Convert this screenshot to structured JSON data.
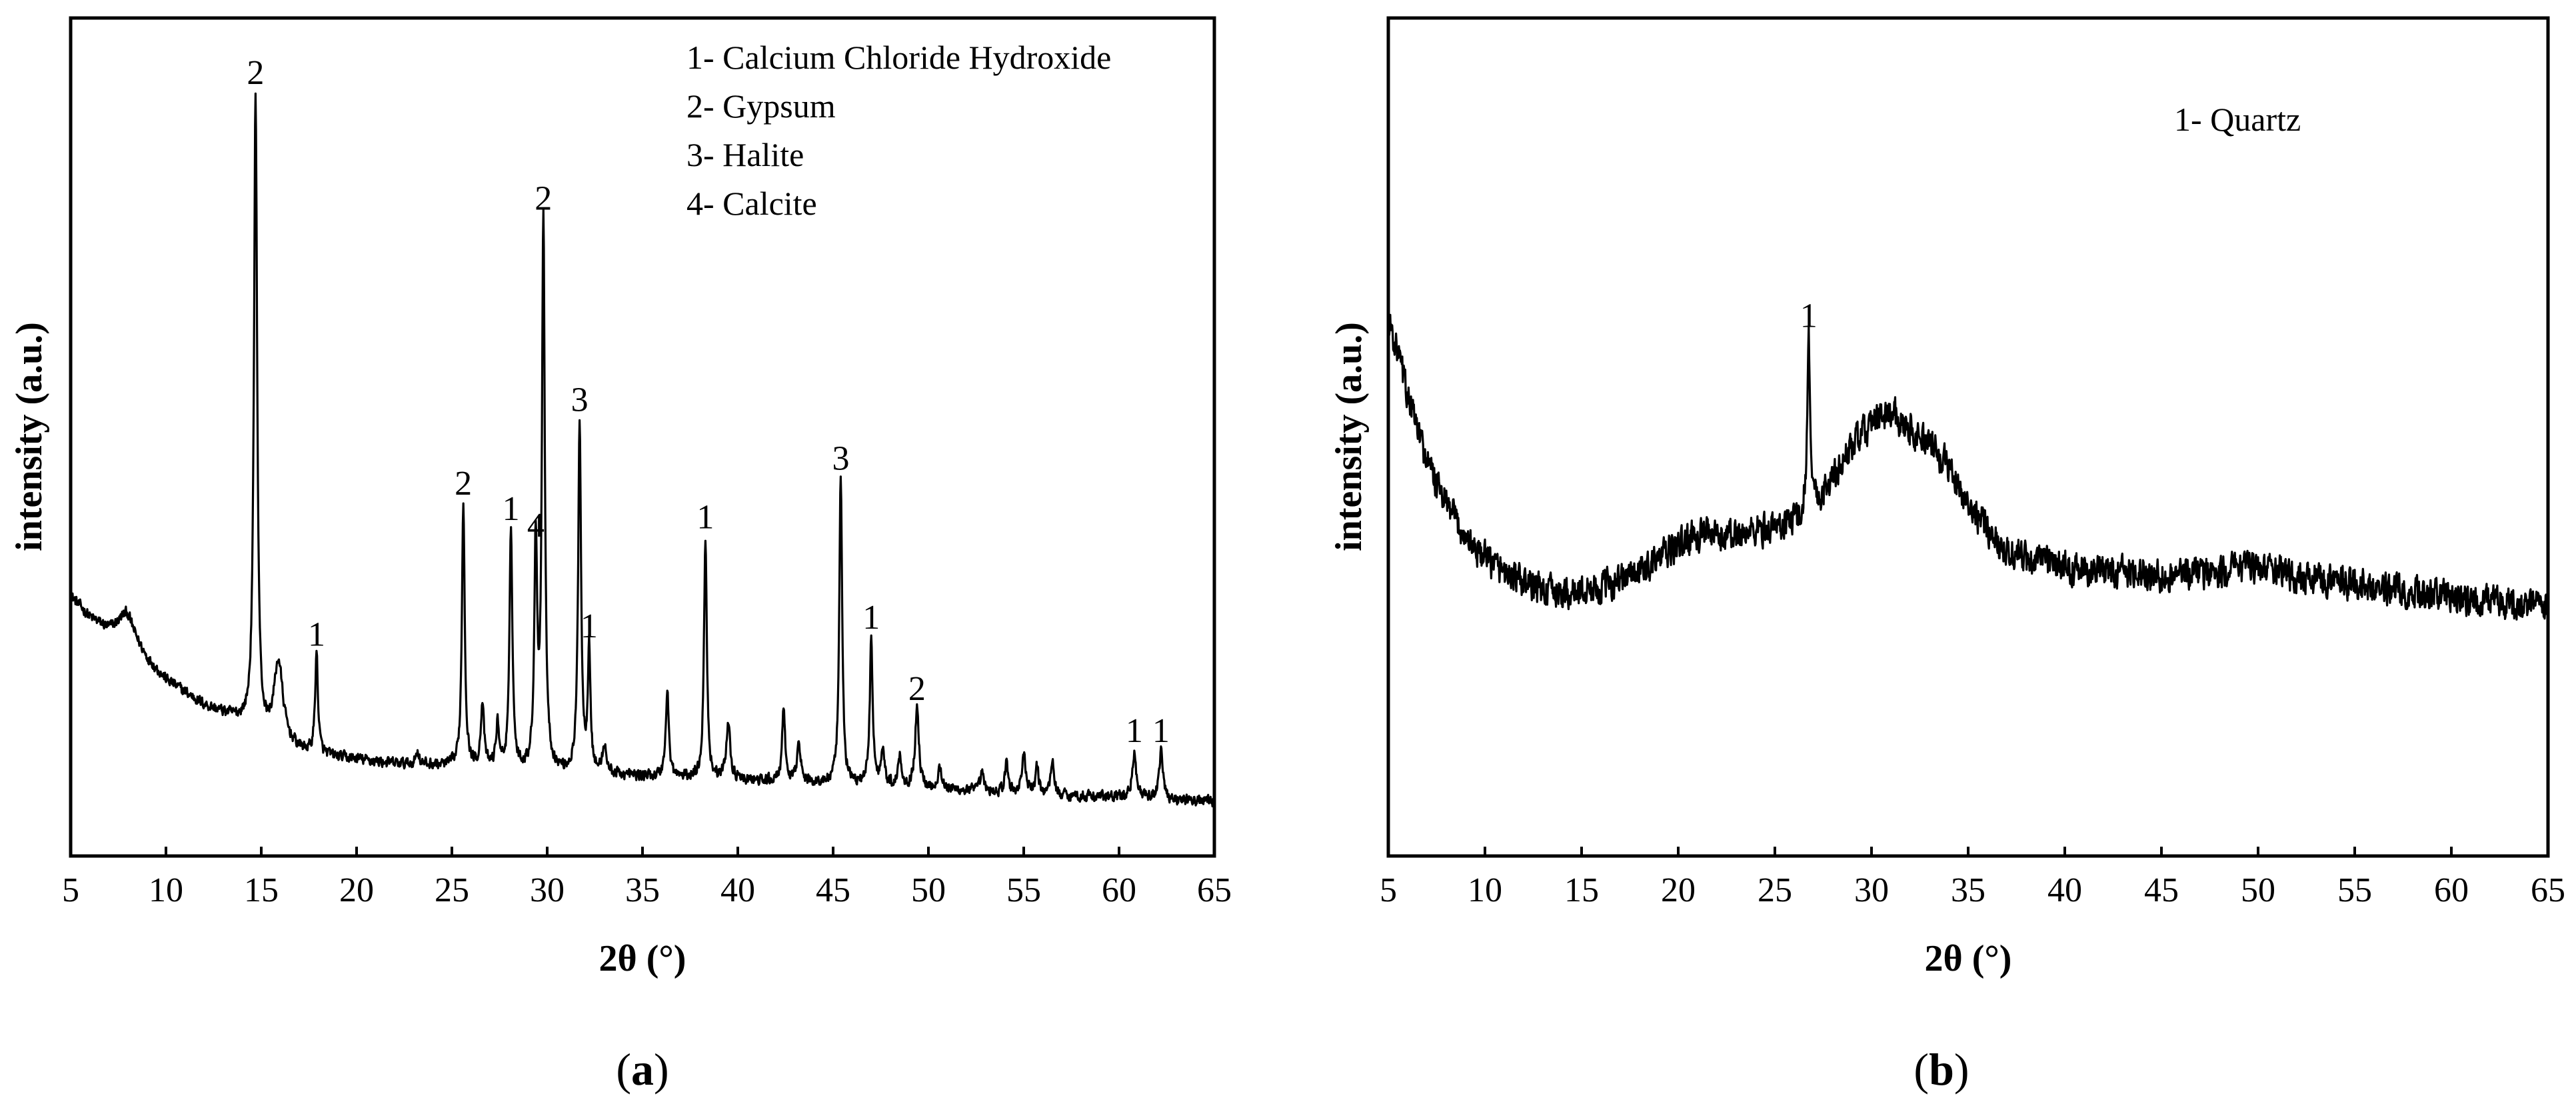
{
  "chart_data": [
    {
      "type": "line",
      "panel_label": "a",
      "xlabel": "2θ (°)",
      "ylabel": "intensity (a.u.)",
      "xlim": [
        5,
        65
      ],
      "ylim": [
        0,
        100
      ],
      "xticks": [
        5,
        10,
        15,
        20,
        25,
        30,
        35,
        40,
        45,
        50,
        55,
        60,
        65
      ],
      "y_tick_labels": false,
      "grid": false,
      "legend_position": "top-right",
      "legend": [
        "1- Calcium Chloride Hydroxide",
        "2- Gypsum",
        "3- Halite",
        "4- Calcite"
      ],
      "baseline": [
        [
          5,
          31
        ],
        [
          6,
          28.5
        ],
        [
          7,
          27
        ],
        [
          8,
          27
        ],
        [
          9,
          23.5
        ],
        [
          10,
          21
        ],
        [
          11,
          19.5
        ],
        [
          12,
          18
        ],
        [
          13,
          17
        ],
        [
          14,
          16
        ],
        [
          15,
          14
        ],
        [
          16,
          13.5
        ],
        [
          17,
          12.5
        ],
        [
          18,
          12
        ],
        [
          20,
          11.5
        ],
        [
          22,
          11
        ],
        [
          24,
          10.8
        ],
        [
          26,
          10.5
        ],
        [
          28,
          10.3
        ],
        [
          30,
          10
        ],
        [
          32,
          9.8
        ],
        [
          35,
          9.5
        ],
        [
          38,
          9.2
        ],
        [
          40,
          9
        ],
        [
          44,
          8.7
        ],
        [
          48,
          8.3
        ],
        [
          52,
          7.8
        ],
        [
          56,
          7.3
        ],
        [
          60,
          7
        ],
        [
          65,
          6.5
        ]
      ],
      "peaks": [
        {
          "x": 7.9,
          "y": 29,
          "width": 0.45,
          "label": ""
        },
        {
          "x": 14.7,
          "y": 91,
          "width": 0.1,
          "label": "2"
        },
        {
          "x": 15.9,
          "y": 23,
          "width": 0.28,
          "label": ""
        },
        {
          "x": 17.9,
          "y": 24,
          "width": 0.09,
          "label": "1"
        },
        {
          "x": 23.2,
          "y": 12.5,
          "width": 0.1,
          "label": ""
        },
        {
          "x": 25.6,
          "y": 42,
          "width": 0.09,
          "label": "2"
        },
        {
          "x": 26.6,
          "y": 18,
          "width": 0.1,
          "label": ""
        },
        {
          "x": 27.4,
          "y": 15.5,
          "width": 0.1,
          "label": ""
        },
        {
          "x": 28.1,
          "y": 39,
          "width": 0.09,
          "label": "1"
        },
        {
          "x": 29.4,
          "y": 37,
          "width": 0.09,
          "label": "4"
        },
        {
          "x": 29.8,
          "y": 76,
          "width": 0.09,
          "label": "2"
        },
        {
          "x": 31.7,
          "y": 52,
          "width": 0.09,
          "label": "3"
        },
        {
          "x": 32.2,
          "y": 25,
          "width": 0.08,
          "label": "1"
        },
        {
          "x": 33.0,
          "y": 13,
          "width": 0.12,
          "label": ""
        },
        {
          "x": 36.3,
          "y": 19.5,
          "width": 0.1,
          "label": ""
        },
        {
          "x": 38.3,
          "y": 38,
          "width": 0.09,
          "label": "1"
        },
        {
          "x": 39.5,
          "y": 16,
          "width": 0.12,
          "label": ""
        },
        {
          "x": 42.4,
          "y": 17,
          "width": 0.1,
          "label": ""
        },
        {
          "x": 43.2,
          "y": 14,
          "width": 0.1,
          "label": ""
        },
        {
          "x": 45.4,
          "y": 45,
          "width": 0.09,
          "label": "3"
        },
        {
          "x": 47.0,
          "y": 26,
          "width": 0.09,
          "label": "1"
        },
        {
          "x": 47.6,
          "y": 13,
          "width": 0.1,
          "label": ""
        },
        {
          "x": 48.5,
          "y": 12,
          "width": 0.1,
          "label": ""
        },
        {
          "x": 49.4,
          "y": 17.5,
          "width": 0.12,
          "label": "2"
        },
        {
          "x": 50.6,
          "y": 10.5,
          "width": 0.12,
          "label": ""
        },
        {
          "x": 52.8,
          "y": 10,
          "width": 0.1,
          "label": ""
        },
        {
          "x": 54.1,
          "y": 11,
          "width": 0.1,
          "label": ""
        },
        {
          "x": 55.0,
          "y": 12,
          "width": 0.12,
          "label": ""
        },
        {
          "x": 55.7,
          "y": 10.5,
          "width": 0.1,
          "label": ""
        },
        {
          "x": 56.5,
          "y": 11.5,
          "width": 0.1,
          "label": ""
        },
        {
          "x": 60.8,
          "y": 12.5,
          "width": 0.12,
          "label": "1"
        },
        {
          "x": 62.2,
          "y": 12.5,
          "width": 0.12,
          "label": "1"
        }
      ],
      "noise_amplitude": 0.9
    },
    {
      "type": "line",
      "panel_label": "b",
      "xlabel": "2θ (°)",
      "ylabel": "intensity (a.u.)",
      "xlim": [
        5,
        65
      ],
      "ylim": [
        0,
        100
      ],
      "xticks": [
        5,
        10,
        15,
        20,
        25,
        30,
        35,
        40,
        45,
        50,
        55,
        60,
        65
      ],
      "y_tick_labels": false,
      "grid": false,
      "legend_position": "top-right",
      "legend": [
        "1- Quartz"
      ],
      "baseline": [
        [
          5,
          64
        ],
        [
          5.5,
          60
        ],
        [
          6,
          55
        ],
        [
          7,
          47
        ],
        [
          8,
          42
        ],
        [
          9,
          38
        ],
        [
          10,
          35.5
        ],
        [
          11,
          34
        ],
        [
          12,
          32.5
        ],
        [
          13,
          31.8
        ],
        [
          14,
          31.2
        ],
        [
          15,
          31.5
        ],
        [
          16,
          32
        ],
        [
          17,
          33
        ],
        [
          18,
          34
        ],
        [
          19,
          35.5
        ],
        [
          20,
          37
        ],
        [
          21,
          38.5
        ],
        [
          22,
          38
        ],
        [
          23,
          38.3
        ],
        [
          24,
          38.8
        ],
        [
          25,
          39.2
        ],
        [
          26,
          40
        ],
        [
          27,
          41.5
        ],
        [
          28,
          45
        ],
        [
          29,
          49
        ],
        [
          30,
          51.5
        ],
        [
          31,
          53
        ],
        [
          32,
          51
        ],
        [
          33,
          49
        ],
        [
          34,
          46.5
        ],
        [
          35,
          42
        ],
        [
          36,
          39
        ],
        [
          37,
          36.5
        ],
        [
          38,
          35.5
        ],
        [
          39,
          35
        ],
        [
          40,
          34.5
        ],
        [
          42,
          34
        ],
        [
          45,
          33.5
        ],
        [
          48,
          34
        ],
        [
          50,
          34.5
        ],
        [
          52,
          33.5
        ],
        [
          55,
          32.5
        ],
        [
          58,
          31.5
        ],
        [
          60,
          31
        ],
        [
          63,
          30
        ],
        [
          65,
          29.5
        ]
      ],
      "peaks": [
        {
          "x": 26.75,
          "y": 62,
          "width": 0.09,
          "label": "1"
        }
      ],
      "noise_amplitude": 2.6
    }
  ]
}
